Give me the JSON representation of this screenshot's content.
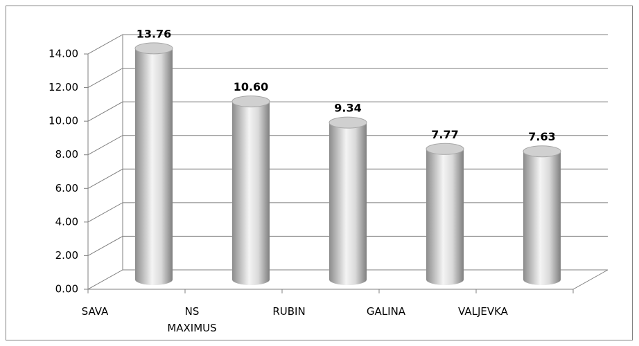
{
  "chart_data": {
    "type": "bar3d",
    "categories": [
      "SAVA",
      "NS MAXIMUS",
      "RUBIN",
      "GALINA",
      "VALJEVKA"
    ],
    "values": [
      13.76,
      10.6,
      9.34,
      7.77,
      7.63
    ],
    "value_labels": [
      "13.76",
      "10.60",
      "9.34",
      "7.77",
      "7.63"
    ],
    "color": "#bfbfbf",
    "ylim": [
      0,
      14
    ],
    "yticks": [
      {
        "value": 0,
        "label": "0.00"
      },
      {
        "value": 2,
        "label": "2.00"
      },
      {
        "value": 4,
        "label": "4.00"
      },
      {
        "value": 6,
        "label": "6.00"
      },
      {
        "value": 8,
        "label": "8.00"
      },
      {
        "value": 10,
        "label": "10.00"
      },
      {
        "value": 12,
        "label": "12.00"
      },
      {
        "value": 14,
        "label": "14.00"
      }
    ],
    "grid": true
  }
}
